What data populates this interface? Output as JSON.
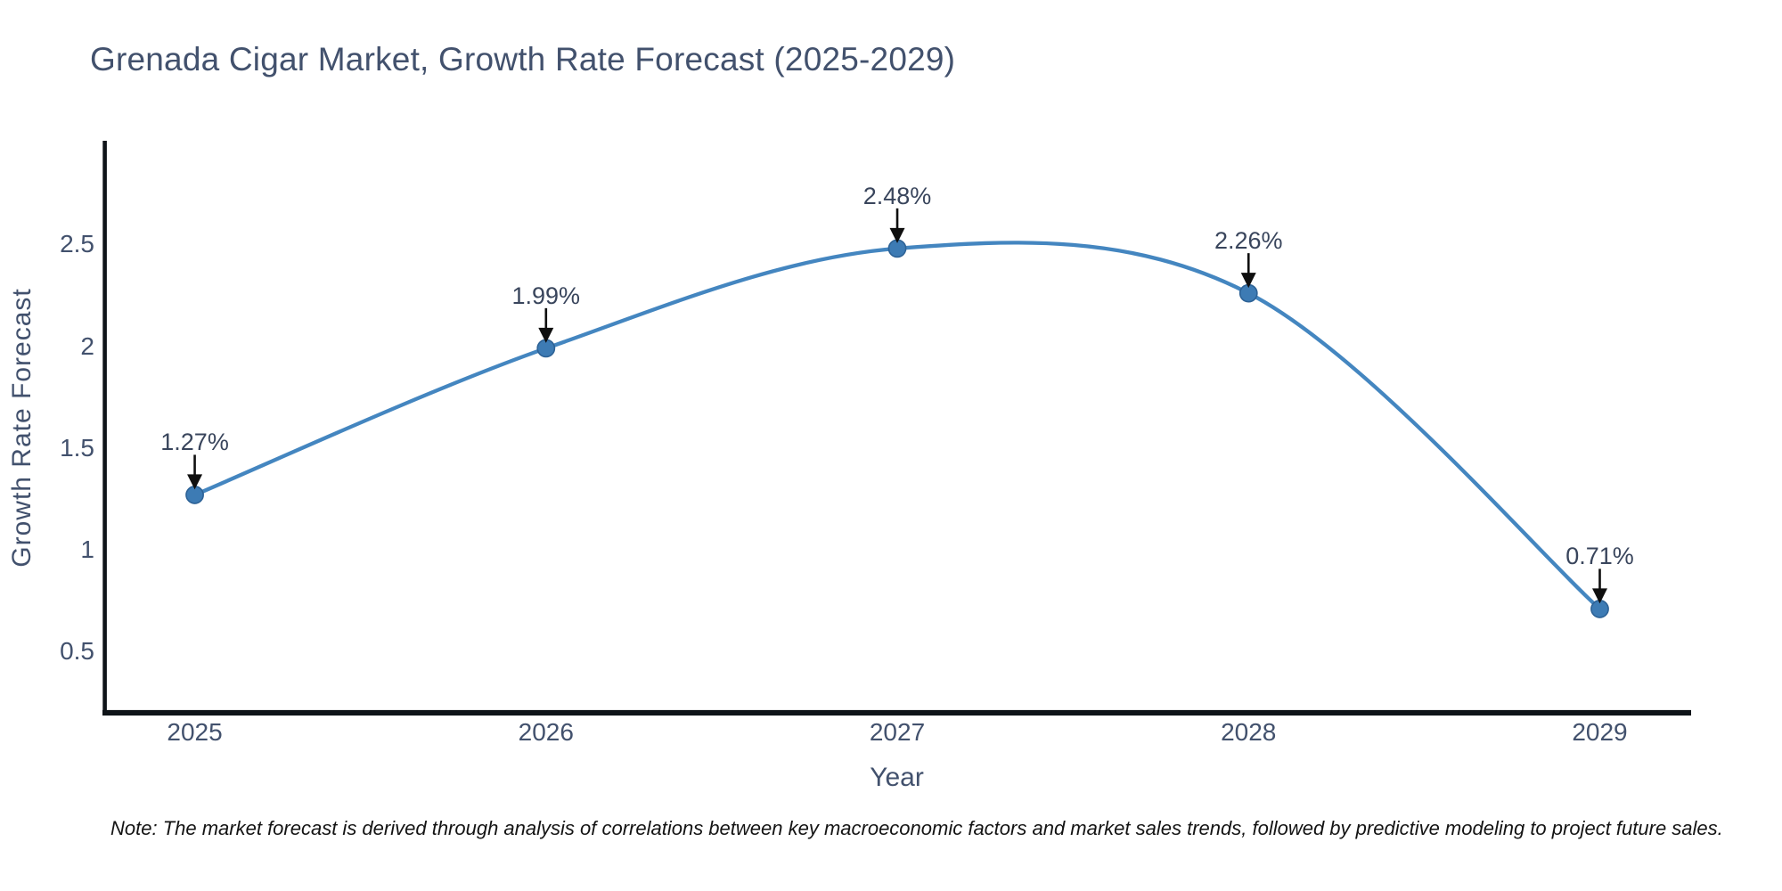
{
  "title": "Grenada Cigar Market, Growth Rate Forecast (2025-2029)",
  "note": "Note: The market forecast is derived through analysis of correlations between key macroeconomic factors and market sales trends, followed by predictive modeling to project future sales.",
  "chart_data": {
    "type": "line",
    "title": "Grenada Cigar Market, Growth Rate Forecast (2025-2029)",
    "xlabel": "Year",
    "ylabel": "Growth Rate Forecast",
    "x": [
      2025,
      2026,
      2027,
      2028,
      2029
    ],
    "series": [
      {
        "name": "Growth Rate Forecast",
        "values": [
          1.27,
          1.99,
          2.48,
          2.26,
          0.71
        ]
      }
    ],
    "point_labels": [
      "1.27%",
      "1.99%",
      "2.48%",
      "2.26%",
      "0.71%"
    ],
    "xticks": [
      "2025",
      "2026",
      "2027",
      "2028",
      "2029"
    ],
    "yticks": [
      "0.5",
      "1",
      "1.5",
      "2",
      "2.5"
    ],
    "ytick_values": [
      0.5,
      1,
      1.5,
      2,
      2.5
    ],
    "xlim": [
      2024.75,
      2029.26
    ],
    "ylim": [
      0.2,
      3.0
    ],
    "grid": false,
    "legend_position": "none",
    "line_shape": "spline",
    "colors": {
      "line": "#4486c0",
      "marker_fill": "#3d7bb4",
      "marker_edge": "#2d6296",
      "axis_line": "#0f1419",
      "axis_text": "#42516d",
      "annotation_text": "#39455c",
      "arrow": "#0f0f0f",
      "note_text": "#141414",
      "background": "#ffffff"
    }
  }
}
